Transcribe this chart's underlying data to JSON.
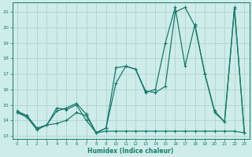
{
  "xlabel": "Humidex (Indice chaleur)",
  "bg_color": "#ceecea",
  "grid_color": "#aed4d0",
  "line_color": "#1a7a6a",
  "xlim_min": -0.5,
  "xlim_max": 23.5,
  "ylim_min": 12.8,
  "ylim_max": 21.6,
  "yticks": [
    13,
    14,
    15,
    16,
    17,
    18,
    19,
    20,
    21
  ],
  "xticks": [
    0,
    1,
    2,
    3,
    4,
    5,
    6,
    7,
    8,
    9,
    10,
    11,
    12,
    13,
    14,
    15,
    16,
    17,
    18,
    19,
    20,
    21,
    22,
    23
  ],
  "line1_x": [
    0,
    1,
    2,
    3,
    4,
    5,
    6,
    7,
    8,
    9,
    10,
    11,
    12,
    13,
    14,
    15,
    16,
    17,
    18,
    19,
    20,
    21,
    22,
    23
  ],
  "line1_y": [
    14.6,
    14.3,
    13.4,
    13.7,
    14.8,
    14.7,
    15.0,
    14.0,
    13.2,
    13.5,
    17.4,
    17.5,
    17.3,
    15.9,
    15.8,
    16.2,
    21.0,
    21.3,
    20.1,
    17.0,
    14.5,
    13.9,
    21.2,
    13.2
  ],
  "line2_x": [
    0,
    1,
    2,
    3,
    4,
    5,
    6,
    7,
    8,
    9,
    10,
    11,
    12,
    13,
    14,
    15,
    16,
    17,
    18,
    19,
    20,
    21,
    22,
    23
  ],
  "line2_y": [
    14.5,
    14.3,
    13.5,
    13.7,
    14.6,
    14.8,
    15.1,
    14.4,
    13.2,
    13.5,
    16.4,
    17.5,
    17.3,
    15.8,
    16.0,
    19.0,
    21.3,
    17.5,
    20.2,
    17.0,
    14.6,
    13.9,
    21.3,
    13.2
  ],
  "line3_x": [
    0,
    1,
    2,
    3,
    4,
    5,
    6,
    7,
    8,
    9,
    10,
    11,
    12,
    13,
    14,
    15,
    16,
    17,
    18,
    19,
    20,
    21,
    22,
    23
  ],
  "line3_y": [
    14.5,
    14.2,
    13.4,
    13.7,
    13.8,
    14.0,
    14.5,
    14.3,
    13.2,
    13.3,
    13.3,
    13.3,
    13.3,
    13.3,
    13.3,
    13.3,
    13.3,
    13.3,
    13.3,
    13.3,
    13.3,
    13.3,
    13.3,
    13.2
  ]
}
